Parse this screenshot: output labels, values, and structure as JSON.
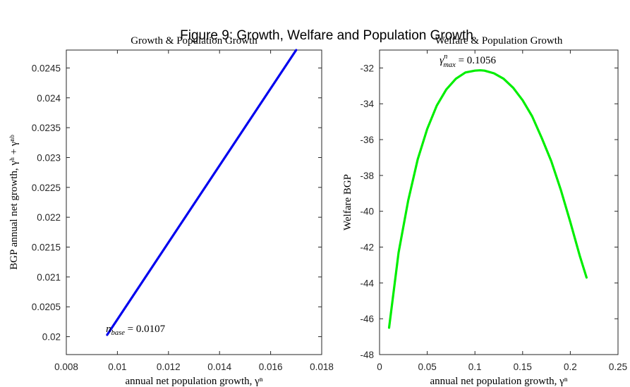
{
  "figure_title": "Figure 9: Growth, Welfare and Population Growth",
  "chart_data": [
    {
      "type": "line",
      "title": "Growth & Population Growth",
      "xlabel": "annual net population growth, γⁿ",
      "ylabel": "BGP annual net growth, γʰ + γⁿᵇ",
      "xlim": [
        0.008,
        0.018
      ],
      "ylim": [
        0.0197,
        0.0248
      ],
      "xticks": [
        0.008,
        0.01,
        0.012,
        0.014,
        0.016,
        0.018
      ],
      "xtick_labels": [
        "0.008",
        "0.01",
        "0.012",
        "0.014",
        "0.016",
        "0.018"
      ],
      "yticks": [
        0.02,
        0.0205,
        0.021,
        0.0215,
        0.022,
        0.0225,
        0.023,
        0.0235,
        0.024,
        0.0245
      ],
      "ytick_labels": [
        "0.02",
        "0.0205",
        "0.021",
        "0.0215",
        "0.022",
        "0.0225",
        "0.023",
        "0.0235",
        "0.024",
        "0.0245"
      ],
      "grid": false,
      "series": [
        {
          "color": "#0000ee",
          "x": [
            0.0096,
            0.017
          ],
          "y": [
            0.02003,
            0.0248
          ]
        }
      ],
      "annotations": [
        {
          "text_main": "n",
          "text_sub": "base",
          "text_rest": " = 0.0107",
          "x": 0.00955,
          "y": 0.02008
        }
      ]
    },
    {
      "type": "line",
      "title": "Welfare & Population Growth",
      "xlabel": "annual net population growth, γⁿ",
      "ylabel": "Welfare BGP",
      "xlim": [
        0,
        0.25
      ],
      "ylim": [
        -48,
        -31
      ],
      "xticks": [
        0,
        0.05,
        0.1,
        0.15,
        0.2,
        0.25
      ],
      "xtick_labels": [
        "0",
        "0.05",
        "0.1",
        "0.15",
        "0.2",
        "0.25"
      ],
      "yticks": [
        -48,
        -46,
        -44,
        -42,
        -40,
        -38,
        -36,
        -34,
        -32
      ],
      "ytick_labels": [
        "-48",
        "-46",
        "-44",
        "-42",
        "-40",
        "-38",
        "-36",
        "-34",
        "-32"
      ],
      "grid": false,
      "series": [
        {
          "color": "#00ee00",
          "x": [
            0.01,
            0.02,
            0.03,
            0.04,
            0.05,
            0.06,
            0.07,
            0.08,
            0.09,
            0.1,
            0.1056,
            0.11,
            0.12,
            0.13,
            0.14,
            0.15,
            0.16,
            0.17,
            0.18,
            0.19,
            0.2,
            0.21,
            0.217
          ],
          "y": [
            -46.5,
            -42.3,
            -39.4,
            -37.1,
            -35.4,
            -34.1,
            -33.2,
            -32.6,
            -32.25,
            -32.15,
            -32.13,
            -32.15,
            -32.3,
            -32.6,
            -33.1,
            -33.8,
            -34.7,
            -35.9,
            -37.2,
            -38.8,
            -40.6,
            -42.5,
            -43.7
          ]
        }
      ],
      "annotations": [
        {
          "text_main": "γ",
          "text_sup": "n",
          "text_sub": "max",
          "text_rest": " = 0.1056",
          "x": 0.063,
          "y": -31.75
        }
      ]
    }
  ]
}
